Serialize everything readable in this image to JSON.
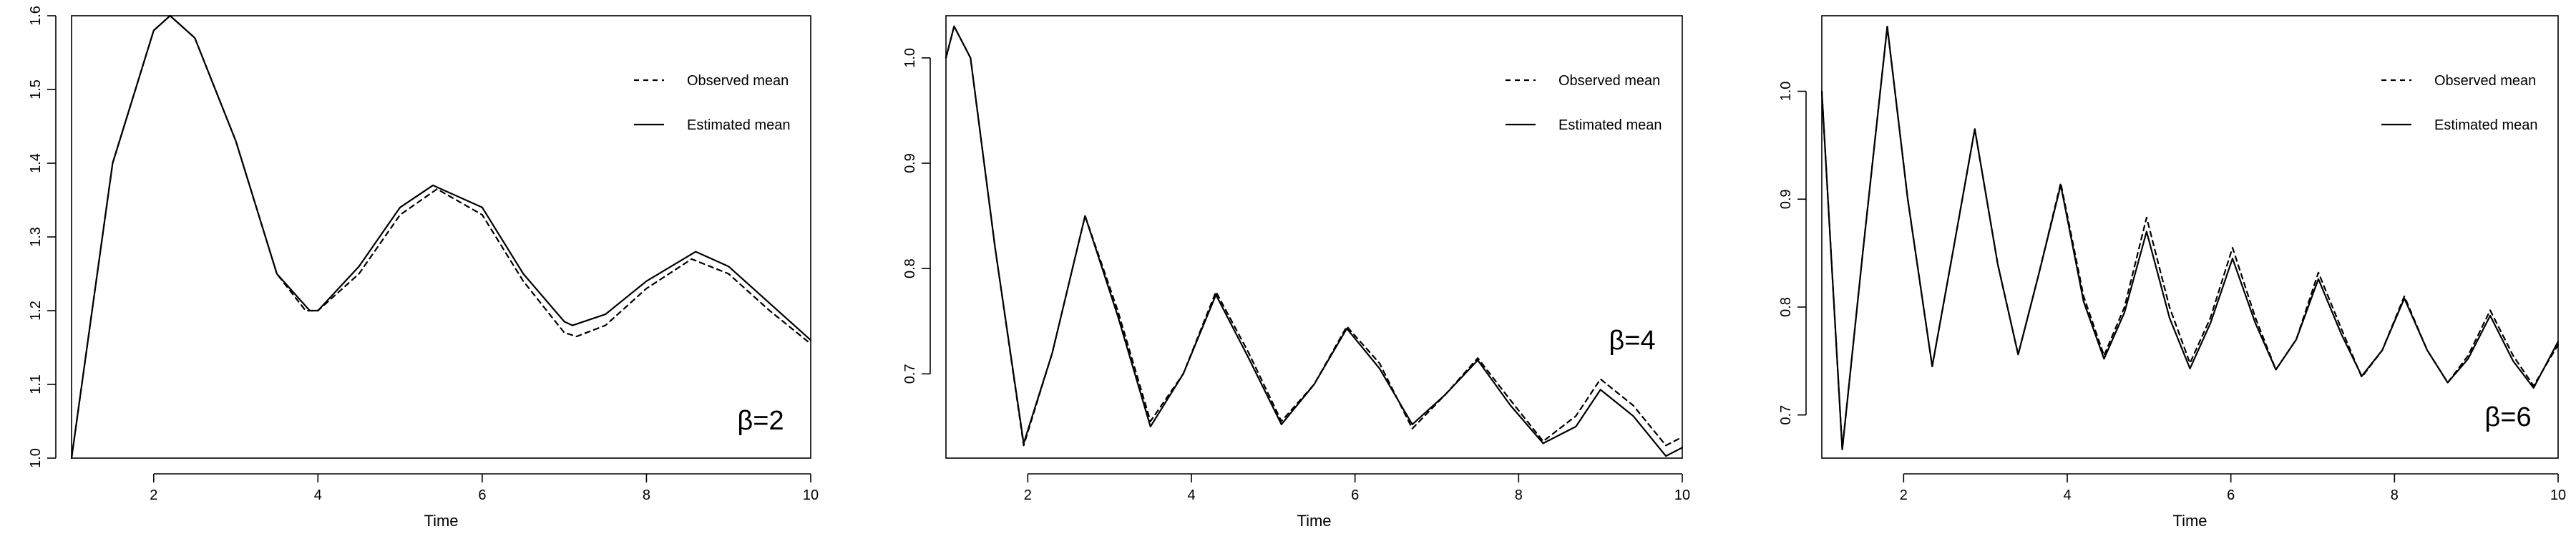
{
  "chart_data": [
    {
      "type": "line",
      "title": "",
      "xlabel": "Time",
      "ylabel": "",
      "xlim": [
        1,
        10
      ],
      "ylim": [
        1.0,
        1.6
      ],
      "xticks": [
        2,
        4,
        6,
        8,
        10
      ],
      "yticks": [
        1.0,
        1.1,
        1.2,
        1.3,
        1.4,
        1.5,
        1.6
      ],
      "annotation": "β=2",
      "legend_position": "top-right",
      "grid": false,
      "series": [
        {
          "name": "Observed mean",
          "style": "dashed",
          "x": [
            1,
            1.5,
            2,
            2.2,
            2.5,
            3,
            3.5,
            3.85,
            4,
            4.5,
            5,
            5.45,
            6,
            6.5,
            7,
            7.15,
            7.5,
            8,
            8.55,
            9,
            9.5,
            10
          ],
          "y": [
            1.0,
            1.4,
            1.58,
            1.6,
            1.57,
            1.43,
            1.25,
            1.2,
            1.2,
            1.25,
            1.33,
            1.365,
            1.33,
            1.24,
            1.17,
            1.165,
            1.18,
            1.23,
            1.27,
            1.25,
            1.2,
            1.155
          ]
        },
        {
          "name": "Estimated mean",
          "style": "solid",
          "x": [
            1,
            1.5,
            2,
            2.2,
            2.5,
            3,
            3.5,
            3.9,
            4,
            4.5,
            5,
            5.4,
            6,
            6.5,
            7,
            7.1,
            7.5,
            8,
            8.6,
            9,
            9.5,
            10
          ],
          "y": [
            1.0,
            1.4,
            1.58,
            1.6,
            1.57,
            1.43,
            1.25,
            1.2,
            1.2,
            1.26,
            1.34,
            1.37,
            1.34,
            1.25,
            1.185,
            1.18,
            1.195,
            1.24,
            1.28,
            1.26,
            1.21,
            1.16
          ]
        }
      ]
    },
    {
      "type": "line",
      "title": "",
      "xlabel": "Time",
      "ylabel": "",
      "xlim": [
        1,
        10
      ],
      "ylim": [
        0.62,
        1.04
      ],
      "xticks": [
        2,
        4,
        6,
        8,
        10
      ],
      "yticks": [
        0.7,
        0.8,
        0.9,
        1.0
      ],
      "annotation": "β=4",
      "legend_position": "top-right",
      "grid": false,
      "series": [
        {
          "name": "Observed mean",
          "style": "dashed",
          "x": [
            1,
            1.1,
            1.3,
            1.6,
            1.95,
            2.3,
            2.7,
            3.1,
            3.5,
            3.9,
            4.3,
            4.7,
            5.1,
            5.5,
            5.9,
            6.3,
            6.7,
            7.1,
            7.5,
            7.9,
            8.3,
            8.7,
            9.0,
            9.4,
            9.8,
            10
          ],
          "y": [
            1.0,
            1.03,
            1.0,
            0.82,
            0.632,
            0.72,
            0.85,
            0.76,
            0.655,
            0.7,
            0.778,
            0.72,
            0.655,
            0.69,
            0.745,
            0.71,
            0.648,
            0.68,
            0.715,
            0.675,
            0.636,
            0.66,
            0.695,
            0.67,
            0.632,
            0.64
          ]
        },
        {
          "name": "Estimated mean",
          "style": "solid",
          "x": [
            1,
            1.1,
            1.3,
            1.6,
            1.95,
            2.3,
            2.7,
            3.1,
            3.5,
            3.9,
            4.3,
            4.7,
            5.1,
            5.5,
            5.9,
            6.3,
            6.7,
            7.1,
            7.5,
            7.9,
            8.3,
            8.7,
            9.0,
            9.4,
            9.8,
            10
          ],
          "y": [
            1.0,
            1.03,
            1.0,
            0.82,
            0.634,
            0.72,
            0.85,
            0.755,
            0.65,
            0.7,
            0.775,
            0.715,
            0.652,
            0.69,
            0.743,
            0.705,
            0.652,
            0.68,
            0.713,
            0.67,
            0.634,
            0.65,
            0.685,
            0.66,
            0.622,
            0.63
          ]
        }
      ]
    },
    {
      "type": "line",
      "title": "",
      "xlabel": "Time",
      "ylabel": "",
      "xlim": [
        1,
        10
      ],
      "ylim": [
        0.66,
        1.07
      ],
      "xticks": [
        2,
        4,
        6,
        8,
        10
      ],
      "yticks": [
        0.7,
        0.8,
        0.9,
        1.0
      ],
      "annotation": "β=6",
      "legend_position": "top-right",
      "grid": false,
      "series": [
        {
          "name": "Observed mean",
          "style": "dashed",
          "x": [
            1,
            1.25,
            1.5,
            1.8,
            2.05,
            2.35,
            2.6,
            2.87,
            3.15,
            3.4,
            3.65,
            3.92,
            4.2,
            4.45,
            4.7,
            4.97,
            5.25,
            5.5,
            5.75,
            6.02,
            6.3,
            6.55,
            6.8,
            7.07,
            7.35,
            7.6,
            7.85,
            8.12,
            8.4,
            8.65,
            8.9,
            9.17,
            9.45,
            9.7,
            10
          ],
          "y": [
            1.0,
            0.668,
            0.85,
            1.06,
            0.9,
            0.745,
            0.85,
            0.965,
            0.84,
            0.756,
            0.83,
            0.915,
            0.81,
            0.755,
            0.8,
            0.883,
            0.8,
            0.748,
            0.79,
            0.855,
            0.79,
            0.742,
            0.77,
            0.832,
            0.78,
            0.735,
            0.76,
            0.81,
            0.76,
            0.73,
            0.755,
            0.797,
            0.755,
            0.727,
            0.765
          ]
        },
        {
          "name": "Estimated mean",
          "style": "solid",
          "x": [
            1,
            1.25,
            1.5,
            1.8,
            2.05,
            2.35,
            2.6,
            2.87,
            3.15,
            3.4,
            3.65,
            3.92,
            4.2,
            4.45,
            4.7,
            4.97,
            5.25,
            5.5,
            5.75,
            6.02,
            6.3,
            6.55,
            6.8,
            7.07,
            7.35,
            7.6,
            7.85,
            8.12,
            8.4,
            8.65,
            8.9,
            9.17,
            9.45,
            9.7,
            10
          ],
          "y": [
            1.0,
            0.668,
            0.85,
            1.06,
            0.9,
            0.745,
            0.85,
            0.965,
            0.84,
            0.756,
            0.83,
            0.913,
            0.805,
            0.752,
            0.795,
            0.87,
            0.79,
            0.743,
            0.785,
            0.845,
            0.785,
            0.742,
            0.77,
            0.826,
            0.775,
            0.736,
            0.76,
            0.808,
            0.76,
            0.73,
            0.752,
            0.792,
            0.75,
            0.725,
            0.768
          ]
        }
      ]
    }
  ]
}
